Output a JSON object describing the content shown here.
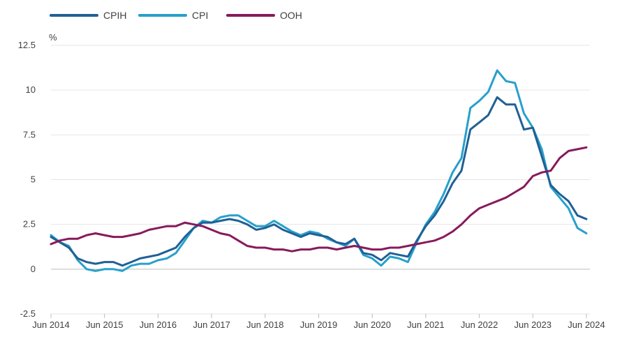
{
  "chart_data": {
    "type": "line",
    "title": "",
    "xlabel": "",
    "ylabel": "%",
    "ylim": [
      -2.5,
      12.5
    ],
    "yticks": [
      "12.5",
      "10",
      "7.5",
      "5",
      "2.5",
      "0",
      "-2.5"
    ],
    "ytick_values": [
      12.5,
      10,
      7.5,
      5,
      2.5,
      0,
      -2.5
    ],
    "xticks": [
      "Jun 2014",
      "Jun 2015",
      "Jun 2016",
      "Jun 2017",
      "Jun 2018",
      "Jun 2019",
      "Jun 2020",
      "Jun 2021",
      "Jun 2022",
      "Jun 2023",
      "Jun 2024"
    ],
    "xtick_values": [
      "2014-06",
      "2015-06",
      "2016-06",
      "2017-06",
      "2018-06",
      "2019-06",
      "2020-06",
      "2021-06",
      "2022-06",
      "2023-06",
      "2024-06"
    ],
    "grid": "horizontal",
    "legend_position": "top-left",
    "series": [
      {
        "name": "CPIH",
        "color": "#206095",
        "points": [
          [
            "2014-06",
            1.8
          ],
          [
            "2014-08",
            1.5
          ],
          [
            "2014-10",
            1.2
          ],
          [
            "2014-12",
            0.6
          ],
          [
            "2015-02",
            0.4
          ],
          [
            "2015-04",
            0.3
          ],
          [
            "2015-06",
            0.4
          ],
          [
            "2015-08",
            0.4
          ],
          [
            "2015-10",
            0.2
          ],
          [
            "2015-12",
            0.4
          ],
          [
            "2016-02",
            0.6
          ],
          [
            "2016-04",
            0.7
          ],
          [
            "2016-06",
            0.8
          ],
          [
            "2016-08",
            1.0
          ],
          [
            "2016-10",
            1.2
          ],
          [
            "2016-12",
            1.8
          ],
          [
            "2017-02",
            2.3
          ],
          [
            "2017-04",
            2.6
          ],
          [
            "2017-06",
            2.6
          ],
          [
            "2017-08",
            2.7
          ],
          [
            "2017-10",
            2.8
          ],
          [
            "2017-12",
            2.7
          ],
          [
            "2018-02",
            2.5
          ],
          [
            "2018-04",
            2.2
          ],
          [
            "2018-06",
            2.3
          ],
          [
            "2018-08",
            2.5
          ],
          [
            "2018-10",
            2.2
          ],
          [
            "2018-12",
            2.0
          ],
          [
            "2019-02",
            1.8
          ],
          [
            "2019-04",
            2.0
          ],
          [
            "2019-06",
            1.9
          ],
          [
            "2019-08",
            1.8
          ],
          [
            "2019-10",
            1.5
          ],
          [
            "2019-12",
            1.4
          ],
          [
            "2020-02",
            1.7
          ],
          [
            "2020-04",
            0.9
          ],
          [
            "2020-06",
            0.8
          ],
          [
            "2020-08",
            0.5
          ],
          [
            "2020-10",
            0.9
          ],
          [
            "2020-12",
            0.8
          ],
          [
            "2021-02",
            0.7
          ],
          [
            "2021-04",
            1.6
          ],
          [
            "2021-06",
            2.4
          ],
          [
            "2021-08",
            3.0
          ],
          [
            "2021-10",
            3.8
          ],
          [
            "2021-12",
            4.8
          ],
          [
            "2022-02",
            5.5
          ],
          [
            "2022-04",
            7.8
          ],
          [
            "2022-06",
            8.2
          ],
          [
            "2022-08",
            8.6
          ],
          [
            "2022-10",
            9.6
          ],
          [
            "2022-12",
            9.2
          ],
          [
            "2023-02",
            9.2
          ],
          [
            "2023-04",
            7.8
          ],
          [
            "2023-06",
            7.9
          ],
          [
            "2023-08",
            6.3
          ],
          [
            "2023-10",
            4.7
          ],
          [
            "2023-12",
            4.2
          ],
          [
            "2024-02",
            3.8
          ],
          [
            "2024-04",
            3.0
          ],
          [
            "2024-06",
            2.8
          ]
        ]
      },
      {
        "name": "CPI",
        "color": "#27a0cc",
        "points": [
          [
            "2014-06",
            1.9
          ],
          [
            "2014-08",
            1.5
          ],
          [
            "2014-10",
            1.3
          ],
          [
            "2014-12",
            0.5
          ],
          [
            "2015-02",
            0.0
          ],
          [
            "2015-04",
            -0.1
          ],
          [
            "2015-06",
            0.0
          ],
          [
            "2015-08",
            0.0
          ],
          [
            "2015-10",
            -0.1
          ],
          [
            "2015-12",
            0.2
          ],
          [
            "2016-02",
            0.3
          ],
          [
            "2016-04",
            0.3
          ],
          [
            "2016-06",
            0.5
          ],
          [
            "2016-08",
            0.6
          ],
          [
            "2016-10",
            0.9
          ],
          [
            "2016-12",
            1.6
          ],
          [
            "2017-02",
            2.3
          ],
          [
            "2017-04",
            2.7
          ],
          [
            "2017-06",
            2.6
          ],
          [
            "2017-08",
            2.9
          ],
          [
            "2017-10",
            3.0
          ],
          [
            "2017-12",
            3.0
          ],
          [
            "2018-02",
            2.7
          ],
          [
            "2018-04",
            2.4
          ],
          [
            "2018-06",
            2.4
          ],
          [
            "2018-08",
            2.7
          ],
          [
            "2018-10",
            2.4
          ],
          [
            "2018-12",
            2.1
          ],
          [
            "2019-02",
            1.9
          ],
          [
            "2019-04",
            2.1
          ],
          [
            "2019-06",
            2.0
          ],
          [
            "2019-08",
            1.7
          ],
          [
            "2019-10",
            1.5
          ],
          [
            "2019-12",
            1.3
          ],
          [
            "2020-02",
            1.7
          ],
          [
            "2020-04",
            0.8
          ],
          [
            "2020-06",
            0.6
          ],
          [
            "2020-08",
            0.2
          ],
          [
            "2020-10",
            0.7
          ],
          [
            "2020-12",
            0.6
          ],
          [
            "2021-02",
            0.4
          ],
          [
            "2021-04",
            1.5
          ],
          [
            "2021-06",
            2.5
          ],
          [
            "2021-08",
            3.2
          ],
          [
            "2021-10",
            4.2
          ],
          [
            "2021-12",
            5.4
          ],
          [
            "2022-02",
            6.2
          ],
          [
            "2022-04",
            9.0
          ],
          [
            "2022-06",
            9.4
          ],
          [
            "2022-08",
            9.9
          ],
          [
            "2022-10",
            11.1
          ],
          [
            "2022-12",
            10.5
          ],
          [
            "2023-02",
            10.4
          ],
          [
            "2023-04",
            8.7
          ],
          [
            "2023-06",
            7.9
          ],
          [
            "2023-08",
            6.7
          ],
          [
            "2023-10",
            4.6
          ],
          [
            "2023-12",
            4.0
          ],
          [
            "2024-02",
            3.4
          ],
          [
            "2024-04",
            2.3
          ],
          [
            "2024-06",
            2.0
          ]
        ]
      },
      {
        "name": "OOH",
        "color": "#871a5b",
        "points": [
          [
            "2014-06",
            1.4
          ],
          [
            "2014-08",
            1.6
          ],
          [
            "2014-10",
            1.7
          ],
          [
            "2014-12",
            1.7
          ],
          [
            "2015-02",
            1.9
          ],
          [
            "2015-04",
            2.0
          ],
          [
            "2015-06",
            1.9
          ],
          [
            "2015-08",
            1.8
          ],
          [
            "2015-10",
            1.8
          ],
          [
            "2015-12",
            1.9
          ],
          [
            "2016-02",
            2.0
          ],
          [
            "2016-04",
            2.2
          ],
          [
            "2016-06",
            2.3
          ],
          [
            "2016-08",
            2.4
          ],
          [
            "2016-10",
            2.4
          ],
          [
            "2016-12",
            2.6
          ],
          [
            "2017-02",
            2.5
          ],
          [
            "2017-04",
            2.4
          ],
          [
            "2017-06",
            2.2
          ],
          [
            "2017-08",
            2.0
          ],
          [
            "2017-10",
            1.9
          ],
          [
            "2017-12",
            1.6
          ],
          [
            "2018-02",
            1.3
          ],
          [
            "2018-04",
            1.2
          ],
          [
            "2018-06",
            1.2
          ],
          [
            "2018-08",
            1.1
          ],
          [
            "2018-10",
            1.1
          ],
          [
            "2018-12",
            1.0
          ],
          [
            "2019-02",
            1.1
          ],
          [
            "2019-04",
            1.1
          ],
          [
            "2019-06",
            1.2
          ],
          [
            "2019-08",
            1.2
          ],
          [
            "2019-10",
            1.1
          ],
          [
            "2019-12",
            1.2
          ],
          [
            "2020-02",
            1.3
          ],
          [
            "2020-04",
            1.2
          ],
          [
            "2020-06",
            1.1
          ],
          [
            "2020-08",
            1.1
          ],
          [
            "2020-10",
            1.2
          ],
          [
            "2020-12",
            1.2
          ],
          [
            "2021-02",
            1.3
          ],
          [
            "2021-04",
            1.4
          ],
          [
            "2021-06",
            1.5
          ],
          [
            "2021-08",
            1.6
          ],
          [
            "2021-10",
            1.8
          ],
          [
            "2021-12",
            2.1
          ],
          [
            "2022-02",
            2.5
          ],
          [
            "2022-04",
            3.0
          ],
          [
            "2022-06",
            3.4
          ],
          [
            "2022-08",
            3.6
          ],
          [
            "2022-10",
            3.8
          ],
          [
            "2022-12",
            4.0
          ],
          [
            "2023-02",
            4.3
          ],
          [
            "2023-04",
            4.6
          ],
          [
            "2023-06",
            5.2
          ],
          [
            "2023-08",
            5.4
          ],
          [
            "2023-10",
            5.5
          ],
          [
            "2023-12",
            6.2
          ],
          [
            "2024-02",
            6.6
          ],
          [
            "2024-04",
            6.7
          ],
          [
            "2024-06",
            6.8
          ]
        ]
      }
    ]
  }
}
